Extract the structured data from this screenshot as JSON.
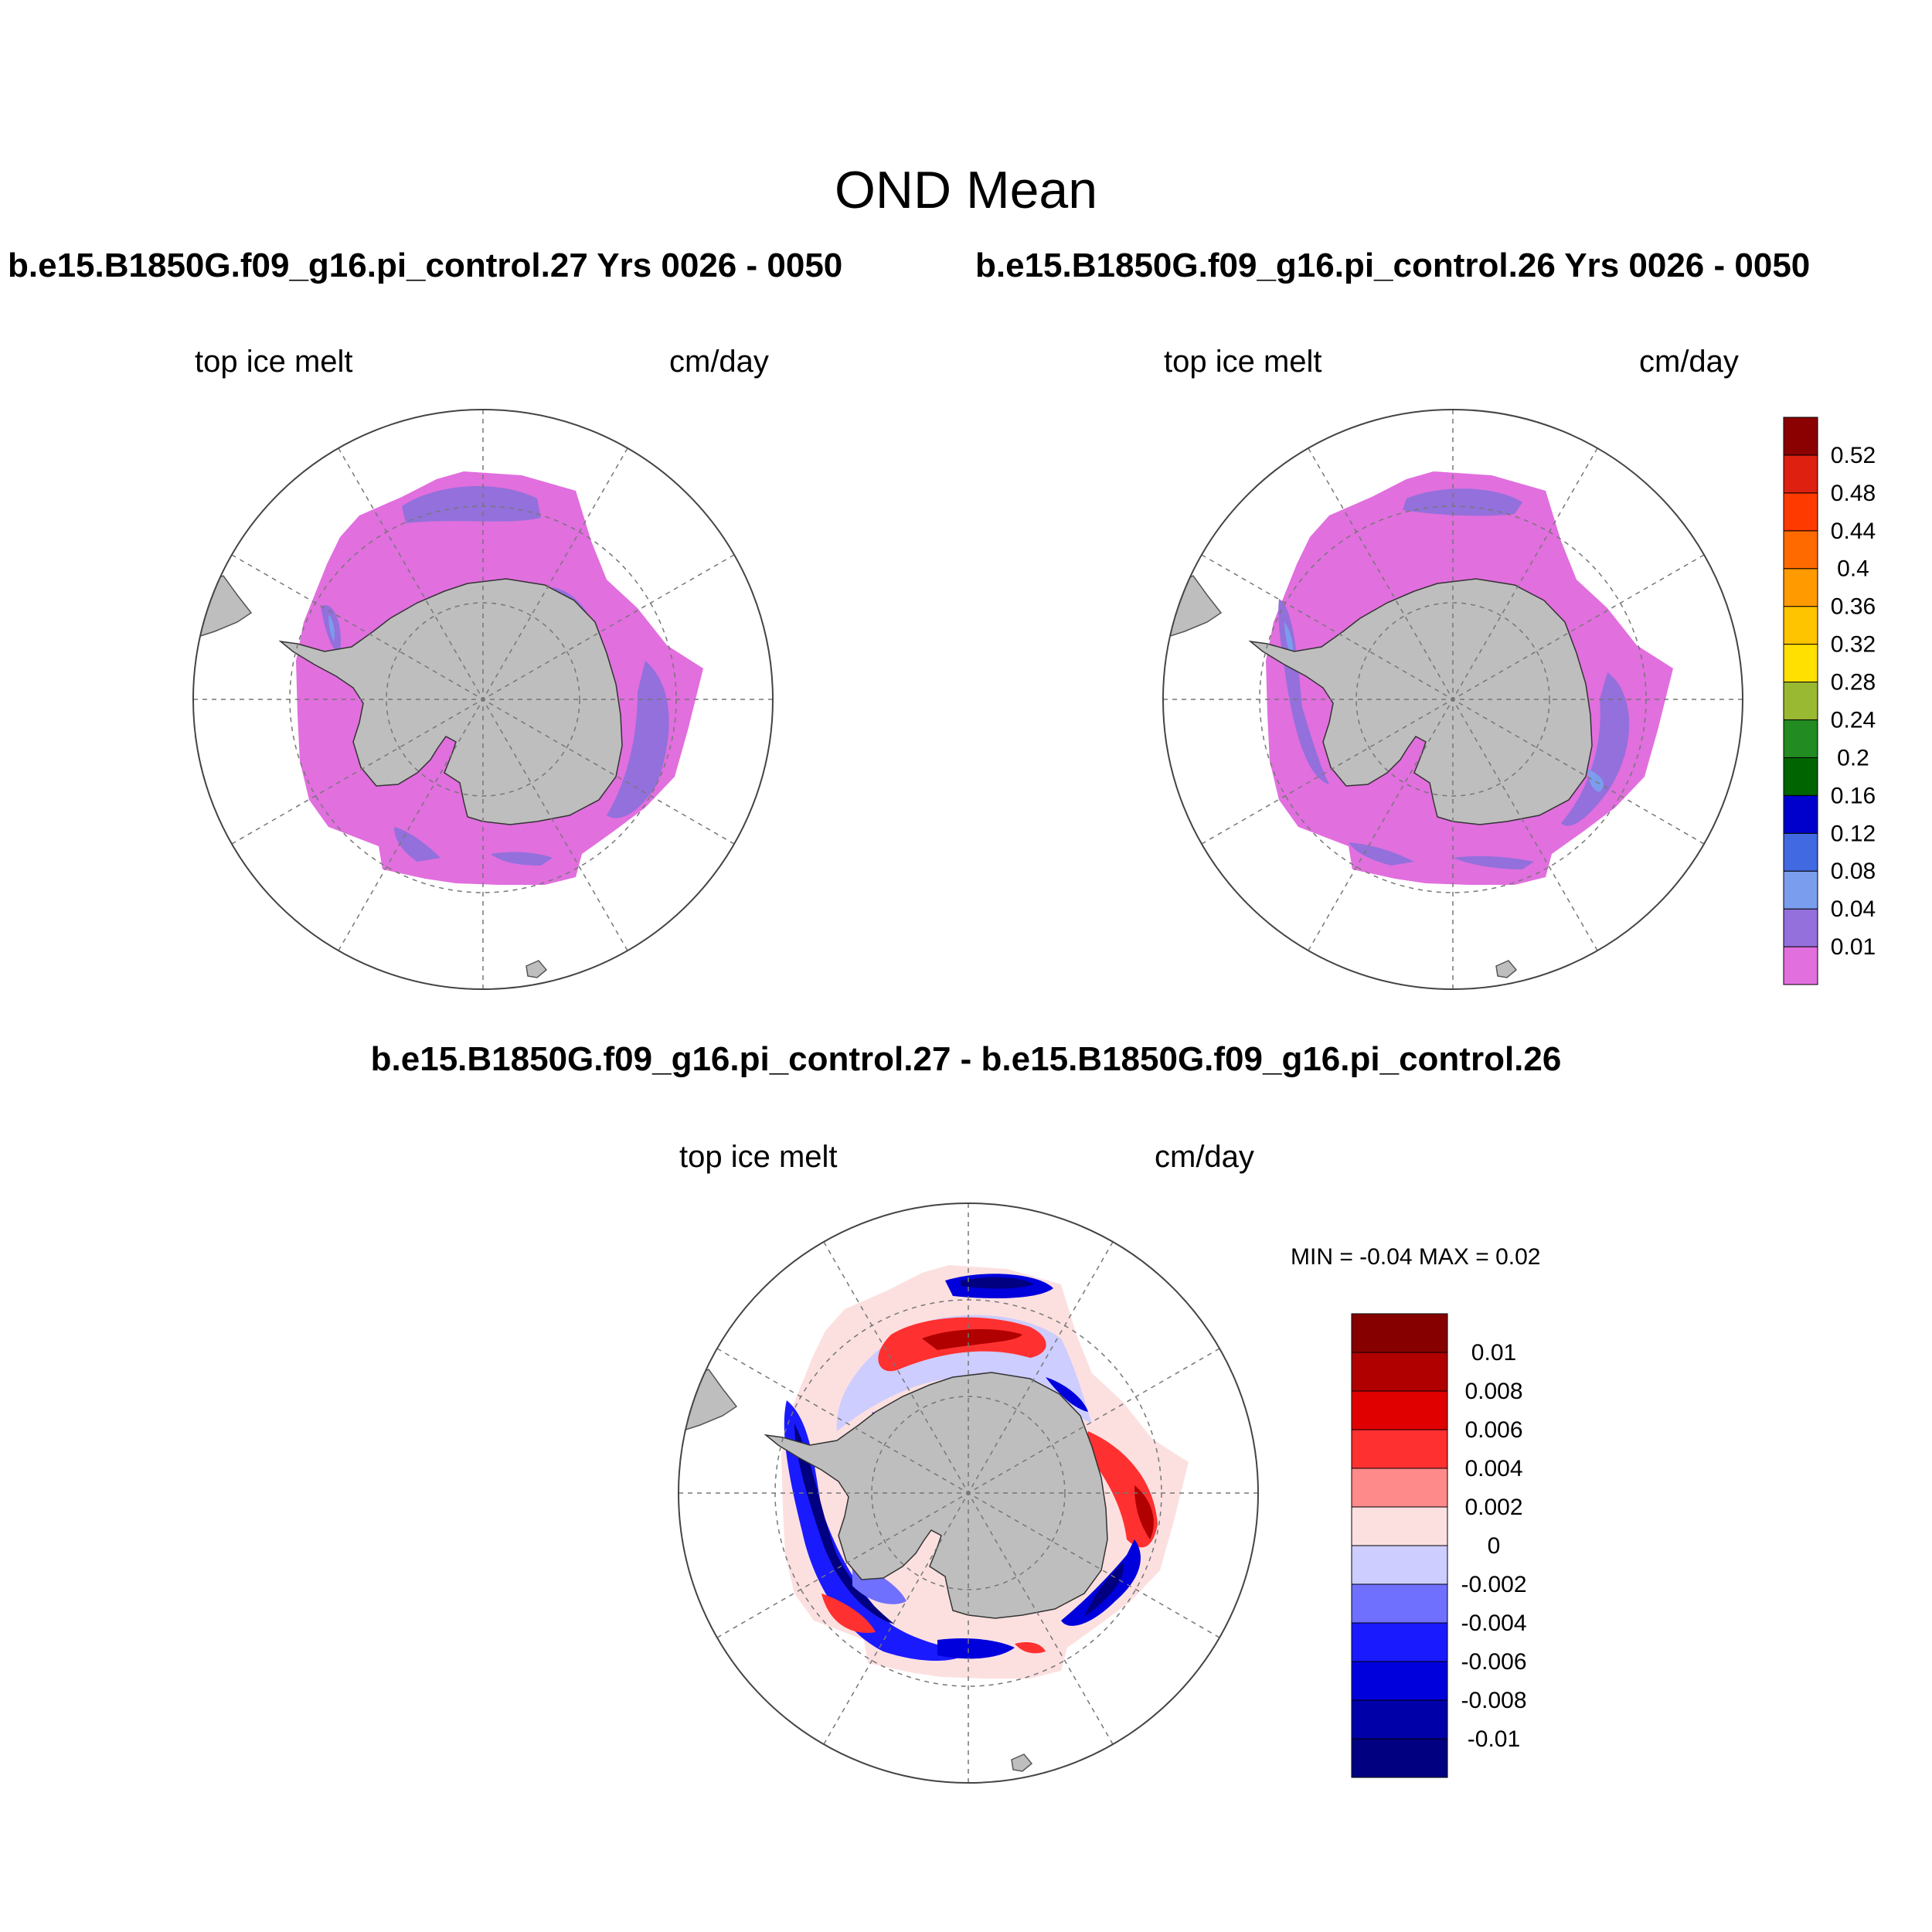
{
  "figure": {
    "title": "OND Mean",
    "panels": [
      {
        "id": "panel-case1",
        "case_title": "b.e15.B1850G.f09_g16.pi_control.27  Yrs 0026 - 0050",
        "variable": "top ice melt",
        "units": "cm/day"
      },
      {
        "id": "panel-case2",
        "case_title": "b.e15.B1850G.f09_g16.pi_control.26  Yrs 0026 - 0050",
        "variable": "top ice melt",
        "units": "cm/day"
      },
      {
        "id": "panel-diff",
        "case_title": "b.e15.B1850G.f09_g16.pi_control.27 - b.e15.B1850G.f09_g16.pi_control.26",
        "variable": "top ice melt",
        "units": "cm/day",
        "min_max": "MIN =  -0.04 MAX =   0.02"
      }
    ]
  },
  "colorbars": {
    "mean": {
      "labels": [
        "0.01",
        "0.04",
        "0.08",
        "0.12",
        "0.16",
        "0.2",
        "0.24",
        "0.28",
        "0.32",
        "0.36",
        "0.4",
        "0.44",
        "0.48",
        "0.52"
      ],
      "colors": [
        "#e16fde",
        "#9370db",
        "#7b9ded",
        "#4169e1",
        "#0000cd",
        "#006400",
        "#228b22",
        "#9ab932",
        "#ffe000",
        "#ffc400",
        "#ff9a00",
        "#ff6a00",
        "#ff3a00",
        "#dd2010",
        "#8b0000"
      ]
    },
    "diff": {
      "labels": [
        "-0.01",
        "-0.008",
        "-0.006",
        "-0.004",
        "-0.002",
        "0",
        "0.002",
        "0.004",
        "0.006",
        "0.008",
        "0.01"
      ],
      "colors": [
        "#000080",
        "#0000a8",
        "#0000dc",
        "#1a1aff",
        "#7070ff",
        "#cdcdff",
        "#fce0e0",
        "#ff8a8a",
        "#ff3030",
        "#e00000",
        "#b00000",
        "#870000"
      ]
    }
  },
  "map": {
    "projection": "south polar stereographic",
    "land_color": "#bebebe",
    "ice_melt_base_color": "#e16fde",
    "ice_melt_band_color": "#9370db"
  }
}
